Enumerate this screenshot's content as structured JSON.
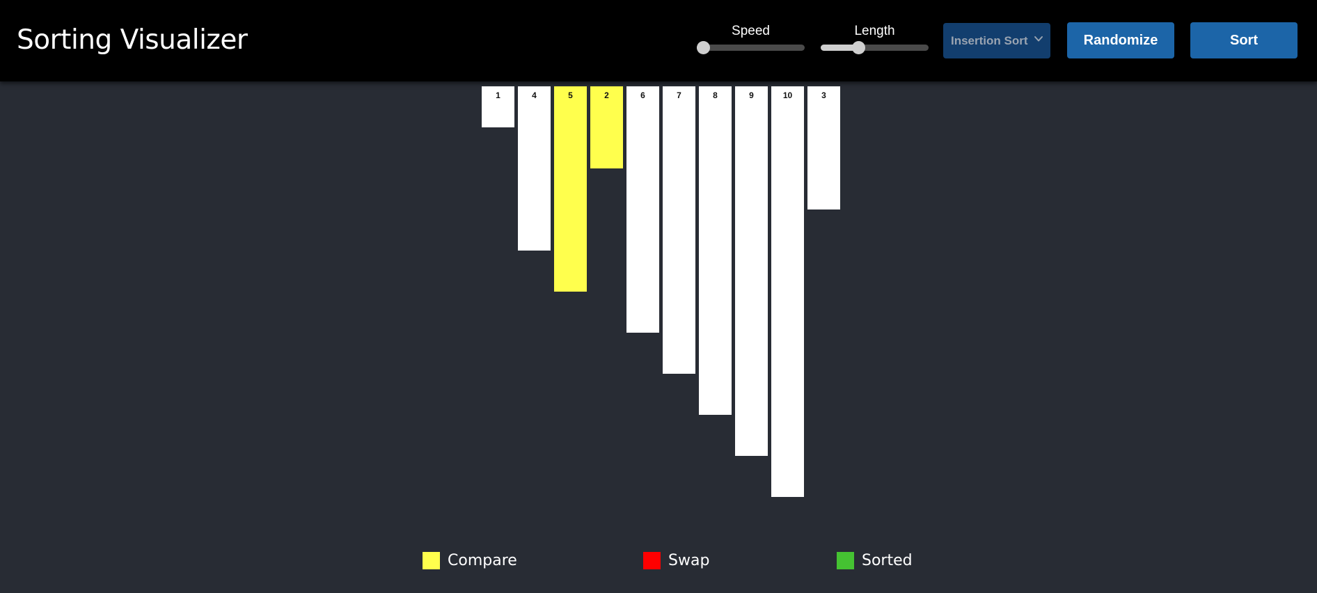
{
  "app": {
    "title": "Sorting Visualizer"
  },
  "controls": {
    "speed": {
      "label": "Speed",
      "value": 0.0
    },
    "length": {
      "label": "Length",
      "value": 0.35
    },
    "algorithm": {
      "selected": "Insertion Sort"
    },
    "randomize_label": "Randomize",
    "sort_label": "Sort"
  },
  "bars": [
    {
      "value": 1,
      "label": "1",
      "state": "default"
    },
    {
      "value": 4,
      "label": "4",
      "state": "default"
    },
    {
      "value": 5,
      "label": "5",
      "state": "compare"
    },
    {
      "value": 2,
      "label": "2",
      "state": "compare"
    },
    {
      "value": 6,
      "label": "6",
      "state": "default"
    },
    {
      "value": 7,
      "label": "7",
      "state": "default"
    },
    {
      "value": 8,
      "label": "8",
      "state": "default"
    },
    {
      "value": 9,
      "label": "9",
      "state": "default"
    },
    {
      "value": 10,
      "label": "10",
      "state": "default"
    },
    {
      "value": 3,
      "label": "3",
      "state": "default"
    }
  ],
  "legend": [
    {
      "key": "compare",
      "label": "Compare",
      "color": "#ffff4d"
    },
    {
      "key": "swap",
      "label": "Swap",
      "color": "#ff0000"
    },
    {
      "key": "sorted",
      "label": "Sorted",
      "color": "#45c232"
    }
  ],
  "colors": {
    "default_bar": "#ffffff",
    "compare": "#ffff4d",
    "header_bg": "#000000",
    "page_bg": "#282c34",
    "button": "#1c65a8",
    "select": "#123e6e"
  }
}
